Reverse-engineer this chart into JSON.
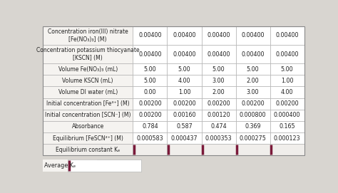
{
  "rows": [
    {
      "label": "Concentration iron(III) nitrate\n[Fe(NO₃)₃] (M)",
      "values": [
        "0.00400",
        "0.00400",
        "0.00400",
        "0.00400",
        "0.00400"
      ],
      "input_row": false,
      "two_line": true
    },
    {
      "label": "Concentration potassium thiocyanate\n[KSCN] (M)",
      "values": [
        "0.00400",
        "0.00400",
        "0.00400",
        "0.00400",
        "0.00400"
      ],
      "input_row": false,
      "two_line": true
    },
    {
      "label": "Volume Fe(NO₃)₃ (mL)",
      "values": [
        "5.00",
        "5.00",
        "5.00",
        "5.00",
        "5.00"
      ],
      "input_row": false,
      "two_line": false
    },
    {
      "label": "Volume KSCN (mL)",
      "values": [
        "5.00",
        "4.00",
        "3.00",
        "2.00",
        "1.00"
      ],
      "input_row": false,
      "two_line": false
    },
    {
      "label": "Volume DI water (mL)",
      "values": [
        "0.00",
        "1.00",
        "2.00",
        "3.00",
        "4.00"
      ],
      "input_row": false,
      "two_line": false
    },
    {
      "label": "Initial concentration [Fe³⁺] (M)",
      "values": [
        "0.00200",
        "0.00200",
        "0.00200",
        "0.00200",
        "0.00200"
      ],
      "input_row": false,
      "two_line": false
    },
    {
      "label": "Initial concentration [SCN⁻] (M)",
      "values": [
        "0.00200",
        "0.00160",
        "0.00120",
        "0.000800",
        "0.000400"
      ],
      "input_row": false,
      "two_line": false
    },
    {
      "label": "Absorbance",
      "values": [
        "0.784",
        "0.587",
        "0.474",
        "0.369",
        "0.165"
      ],
      "input_row": false,
      "two_line": false
    },
    {
      "label": "Equilibrium [FeSCN²⁺] (M)",
      "values": [
        "0.000583",
        "0.000437",
        "0.000353",
        "0.000275",
        "0.000123"
      ],
      "input_row": false,
      "two_line": false
    },
    {
      "label": "Equilibrium constant Kₑ",
      "values": [
        "",
        "",
        "",
        "",
        ""
      ],
      "input_row": true,
      "two_line": false
    }
  ],
  "avg_row_label": "Average Kₑ",
  "bg_color": "#d8d5d0",
  "cell_bg": "#f5f3f0",
  "data_cell_bg": "#ffffff",
  "input_bg": "#f0eeeb",
  "border_color": "#aaaaaa",
  "outer_border_color": "#888888",
  "text_color": "#222222",
  "input_accent": "#7a1a3a",
  "font_size": 5.8,
  "label_font_size": 5.5,
  "n_data_cols": 5
}
